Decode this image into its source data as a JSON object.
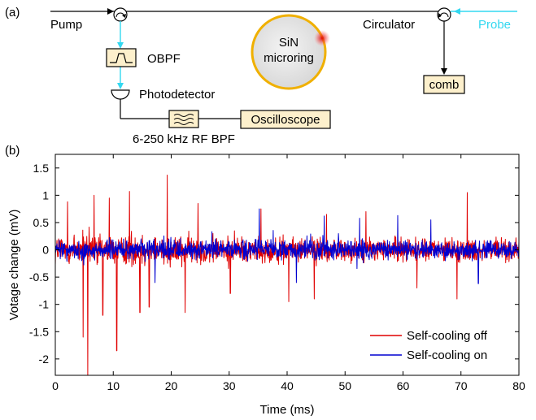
{
  "panel_a": {
    "label": "(a)",
    "pump": "Pump",
    "probe": "Probe",
    "circulator": "Circulator",
    "obpf": "OBPF",
    "photodetector": "Photodetector",
    "rf_bpf": "6-250 kHz RF BPF",
    "oscilloscope": "Oscilloscope",
    "comb": "comb",
    "microring_line1": "SiN",
    "microring_line2": "microring"
  },
  "colors": {
    "probe": "#33d8f0",
    "ring": "#f0b000",
    "box_fill": "#fdf0cc",
    "off": "#e00000",
    "on": "#0000d0"
  },
  "chart_data": {
    "type": "line",
    "panel_label": "(b)",
    "xlabel": "Time (ms)",
    "ylabel": "Votage change (mV)",
    "xlim": [
      0,
      80
    ],
    "ylim": [
      -2.3,
      1.75
    ],
    "xticks": [
      "0",
      "10",
      "20",
      "30",
      "40",
      "50",
      "60",
      "70",
      "80"
    ],
    "yticks": [
      "1.5",
      "1",
      "0.5",
      "0",
      "-0.5",
      "-1",
      "-1.5",
      "-2"
    ],
    "legend_position": "bottom-right",
    "series": [
      {
        "name": "Self-cooling off",
        "color": "#e00000",
        "noise_envelope": [
          [
            0,
            0.45
          ],
          [
            10,
            0.45
          ],
          [
            20,
            0.4
          ],
          [
            40,
            0.32
          ],
          [
            60,
            0.3
          ],
          [
            80,
            0.3
          ]
        ],
        "spikes": [
          {
            "x": 5.6,
            "y": -2.3
          },
          {
            "x": 4.8,
            "y": -1.6
          },
          {
            "x": 10.6,
            "y": -1.85
          },
          {
            "x": 19.3,
            "y": 1.37
          },
          {
            "x": 12.8,
            "y": 1.07
          },
          {
            "x": 8.2,
            "y": -1.2
          },
          {
            "x": 14.6,
            "y": -1.15
          },
          {
            "x": 16.2,
            "y": -1.05
          },
          {
            "x": 22.4,
            "y": -1.15
          },
          {
            "x": 9.3,
            "y": 0.95
          },
          {
            "x": 2.1,
            "y": 0.88
          },
          {
            "x": 6.7,
            "y": 1.0
          },
          {
            "x": 24.6,
            "y": 0.85
          },
          {
            "x": 40.3,
            "y": -0.95
          },
          {
            "x": 44.7,
            "y": -0.9
          },
          {
            "x": 71.1,
            "y": 1.05
          },
          {
            "x": 69.3,
            "y": -0.9
          },
          {
            "x": 30.2,
            "y": -0.8
          },
          {
            "x": 62.4,
            "y": -0.7
          },
          {
            "x": 53.6,
            "y": 0.7
          },
          {
            "x": 46.8,
            "y": 0.65
          },
          {
            "x": 35.5,
            "y": 0.75
          }
        ]
      },
      {
        "name": "Self-cooling on",
        "color": "#0000d0",
        "noise_envelope": [
          [
            0,
            0.26
          ],
          [
            80,
            0.24
          ]
        ],
        "spikes": [
          {
            "x": 35.2,
            "y": 0.75
          },
          {
            "x": 46.4,
            "y": 0.62
          },
          {
            "x": 59.1,
            "y": 0.63
          },
          {
            "x": 52.5,
            "y": 0.58
          },
          {
            "x": 17.2,
            "y": -0.6
          },
          {
            "x": 41.6,
            "y": -0.6
          },
          {
            "x": 73.0,
            "y": -0.62
          },
          {
            "x": 64.8,
            "y": 0.55
          }
        ]
      }
    ]
  }
}
